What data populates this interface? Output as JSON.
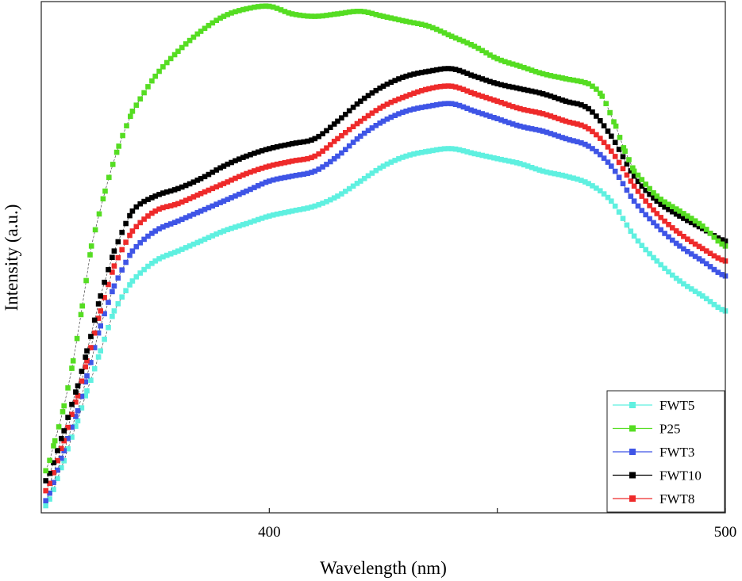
{
  "chart_data": {
    "type": "scatter",
    "xlabel": "Wavelength (nm)",
    "ylabel": "Intensity (a.u.)",
    "xlim": [
      350,
      500
    ],
    "ylim": [
      0,
      100
    ],
    "x_ticks": [
      400,
      450,
      500
    ],
    "x_tick_labels": [
      "400",
      "",
      "500"
    ],
    "y_ticks_labeled": false,
    "grid": false,
    "legend_position": "bottom-right",
    "legend_order": [
      "FWT5",
      "P25",
      "FWT3",
      "FWT10",
      "FWT8"
    ],
    "series": [
      {
        "name": "FWT5",
        "color": "#5ff0e0",
        "points": [
          [
            351,
            0
          ],
          [
            355,
            9
          ],
          [
            358,
            17
          ],
          [
            360,
            23
          ],
          [
            363,
            31
          ],
          [
            366,
            39
          ],
          [
            370,
            45
          ],
          [
            375,
            49
          ],
          [
            380,
            51
          ],
          [
            385,
            53
          ],
          [
            390,
            55
          ],
          [
            395,
            56.5
          ],
          [
            400,
            58
          ],
          [
            405,
            59
          ],
          [
            410,
            60
          ],
          [
            415,
            62
          ],
          [
            420,
            65
          ],
          [
            425,
            68
          ],
          [
            430,
            70
          ],
          [
            435,
            71
          ],
          [
            440,
            71.5
          ],
          [
            445,
            70.5
          ],
          [
            450,
            69.5
          ],
          [
            455,
            68.5
          ],
          [
            460,
            67
          ],
          [
            465,
            66
          ],
          [
            470,
            64.5
          ],
          [
            475,
            61
          ],
          [
            480,
            54
          ],
          [
            485,
            49
          ],
          [
            490,
            45
          ],
          [
            495,
            42
          ],
          [
            500,
            39
          ]
        ]
      },
      {
        "name": "P25",
        "color": "#55dd22",
        "points": [
          [
            351,
            7
          ],
          [
            353,
            13
          ],
          [
            355,
            20
          ],
          [
            357,
            29
          ],
          [
            359,
            40
          ],
          [
            361,
            52
          ],
          [
            364,
            63
          ],
          [
            367,
            72
          ],
          [
            370,
            79
          ],
          [
            375,
            86
          ],
          [
            380,
            91
          ],
          [
            385,
            95
          ],
          [
            390,
            98
          ],
          [
            395,
            99.5
          ],
          [
            400,
            100
          ],
          [
            405,
            98.5
          ],
          [
            410,
            98
          ],
          [
            415,
            98.5
          ],
          [
            420,
            99
          ],
          [
            425,
            98
          ],
          [
            430,
            97
          ],
          [
            435,
            96
          ],
          [
            440,
            94
          ],
          [
            445,
            92
          ],
          [
            450,
            89.5
          ],
          [
            455,
            88
          ],
          [
            460,
            86.5
          ],
          [
            465,
            85.5
          ],
          [
            470,
            84.5
          ],
          [
            473,
            82
          ],
          [
            476,
            76
          ],
          [
            478,
            71
          ],
          [
            480,
            67
          ],
          [
            485,
            62
          ],
          [
            490,
            59
          ],
          [
            495,
            56
          ],
          [
            500,
            52
          ]
        ]
      },
      {
        "name": "FWT3",
        "color": "#3f55e6",
        "points": [
          [
            351,
            1
          ],
          [
            355,
            11
          ],
          [
            358,
            19
          ],
          [
            360,
            26
          ],
          [
            363,
            36
          ],
          [
            366,
            44
          ],
          [
            370,
            51
          ],
          [
            375,
            55
          ],
          [
            380,
            57
          ],
          [
            385,
            59
          ],
          [
            390,
            61
          ],
          [
            395,
            63
          ],
          [
            400,
            65
          ],
          [
            405,
            66
          ],
          [
            410,
            67
          ],
          [
            415,
            70
          ],
          [
            420,
            74
          ],
          [
            425,
            77
          ],
          [
            430,
            79
          ],
          [
            435,
            80
          ],
          [
            440,
            80.5
          ],
          [
            445,
            79
          ],
          [
            450,
            77.5
          ],
          [
            455,
            76
          ],
          [
            460,
            75
          ],
          [
            465,
            73.5
          ],
          [
            470,
            72
          ],
          [
            475,
            68
          ],
          [
            480,
            61
          ],
          [
            485,
            56
          ],
          [
            490,
            52
          ],
          [
            495,
            49
          ],
          [
            500,
            46
          ]
        ]
      },
      {
        "name": "FWT10",
        "color": "#000000",
        "points": [
          [
            351,
            5
          ],
          [
            355,
            15
          ],
          [
            358,
            24
          ],
          [
            360,
            31
          ],
          [
            363,
            42
          ],
          [
            366,
            51
          ],
          [
            370,
            59
          ],
          [
            375,
            62
          ],
          [
            380,
            63.5
          ],
          [
            385,
            65.5
          ],
          [
            390,
            68
          ],
          [
            395,
            70
          ],
          [
            400,
            71.5
          ],
          [
            405,
            72.5
          ],
          [
            410,
            73.5
          ],
          [
            415,
            77
          ],
          [
            420,
            81
          ],
          [
            425,
            84
          ],
          [
            430,
            86
          ],
          [
            435,
            87
          ],
          [
            440,
            87.5
          ],
          [
            445,
            86
          ],
          [
            450,
            84.5
          ],
          [
            455,
            83.5
          ],
          [
            460,
            82.5
          ],
          [
            465,
            81
          ],
          [
            470,
            79.5
          ],
          [
            475,
            74
          ],
          [
            480,
            66
          ],
          [
            485,
            61
          ],
          [
            490,
            58
          ],
          [
            495,
            55.5
          ],
          [
            500,
            53
          ]
        ]
      },
      {
        "name": "FWT8",
        "color": "#ee2a2a",
        "points": [
          [
            351,
            3
          ],
          [
            355,
            13
          ],
          [
            358,
            22
          ],
          [
            360,
            29
          ],
          [
            363,
            39
          ],
          [
            366,
            48
          ],
          [
            370,
            55
          ],
          [
            375,
            59
          ],
          [
            380,
            60.5
          ],
          [
            385,
            62.5
          ],
          [
            390,
            64.5
          ],
          [
            395,
            66.5
          ],
          [
            400,
            68
          ],
          [
            405,
            69
          ],
          [
            410,
            70
          ],
          [
            415,
            73.5
          ],
          [
            420,
            77
          ],
          [
            425,
            80
          ],
          [
            430,
            82
          ],
          [
            435,
            83.5
          ],
          [
            440,
            84
          ],
          [
            445,
            82.5
          ],
          [
            450,
            81
          ],
          [
            455,
            79.5
          ],
          [
            460,
            78.5
          ],
          [
            465,
            77
          ],
          [
            470,
            75.5
          ],
          [
            475,
            71
          ],
          [
            480,
            64
          ],
          [
            485,
            58.5
          ],
          [
            490,
            54.5
          ],
          [
            495,
            51.5
          ],
          [
            500,
            49
          ]
        ]
      }
    ]
  }
}
